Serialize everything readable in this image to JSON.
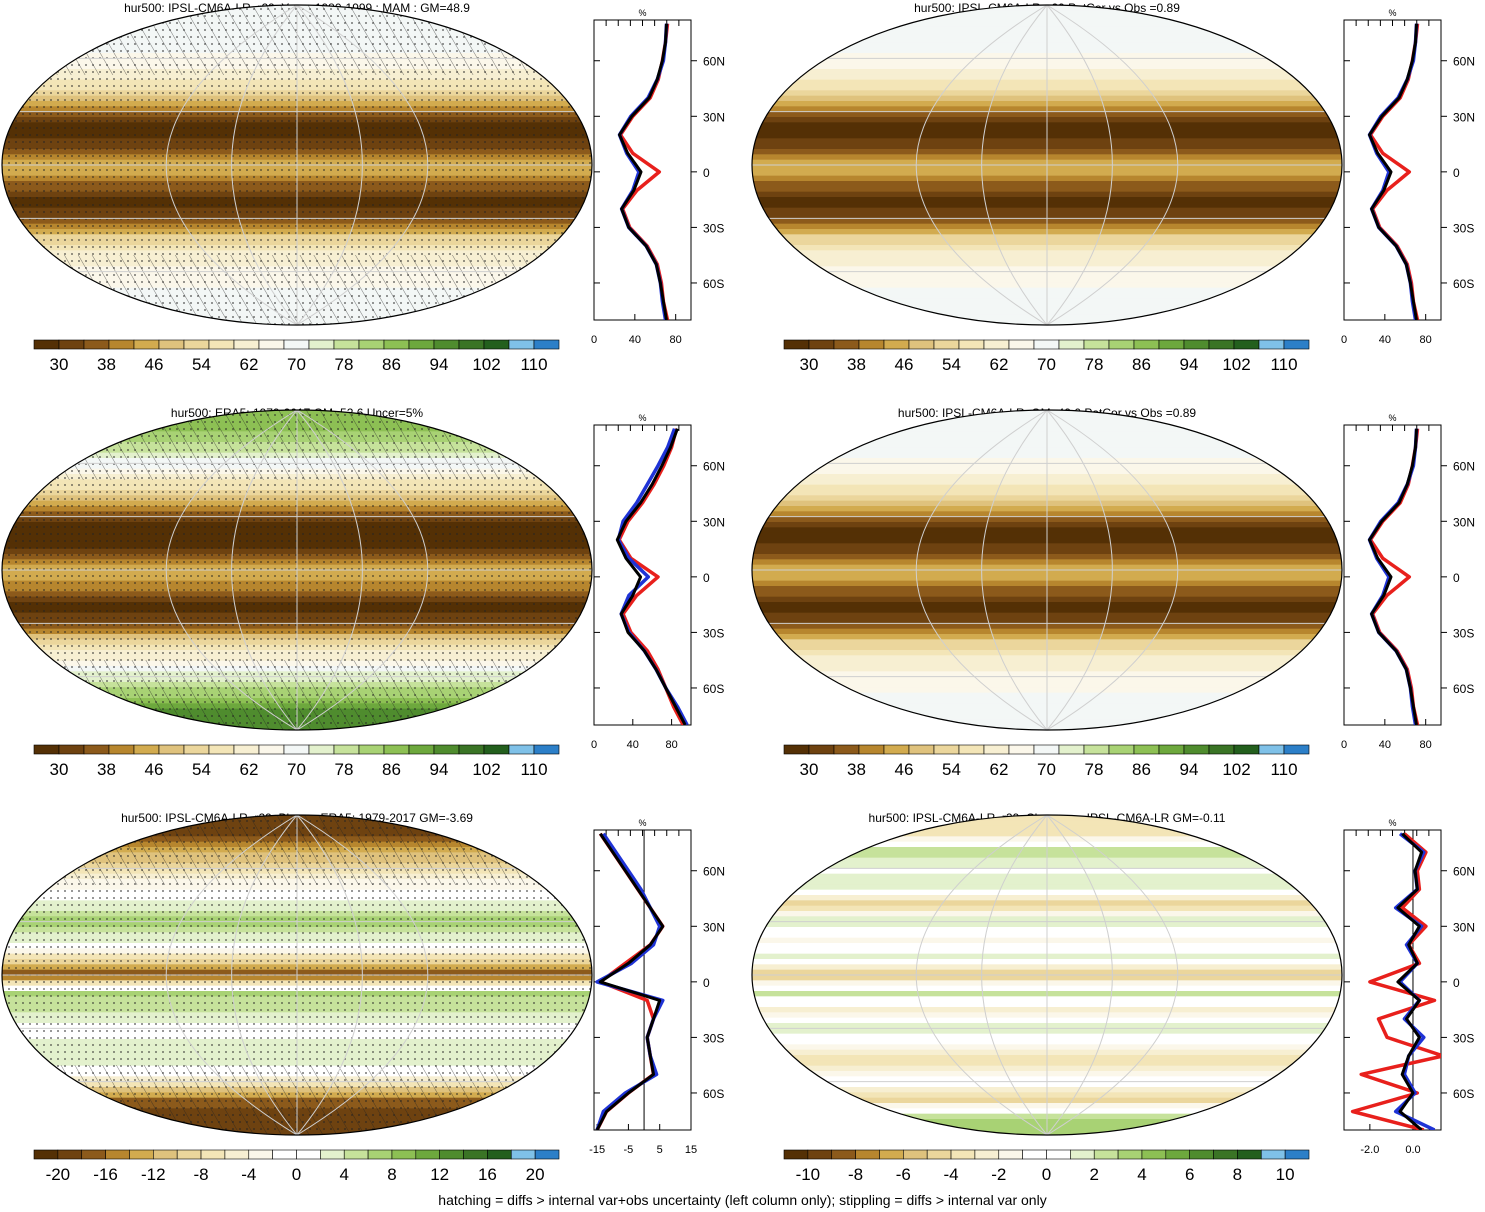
{
  "footnote": "hatching = diffs > internal var+obs uncertainty (left column only); stippling = diffs > internal var only",
  "colors": {
    "profile_series": [
      "#e8201c",
      "#1f33d6",
      "#000000"
    ],
    "abs_palette": [
      "#543005",
      "#6e4210",
      "#8c5a1b",
      "#b7862e",
      "#d2ab4f",
      "#dfc27d",
      "#ebd69c",
      "#f3e5b7",
      "#f7efd2",
      "#fbf7ea",
      "#f3f7f6",
      "#e3f1cd",
      "#c6e29b",
      "#a8d274",
      "#8dc054",
      "#6da83d",
      "#4f8c2e",
      "#3a7425",
      "#235f1d",
      "#7fc1e8",
      "#2c7fc8"
    ],
    "diff_palette": [
      "#543005",
      "#6e4210",
      "#8c5a1b",
      "#b7862e",
      "#d2ab4f",
      "#dfc27d",
      "#ebd69c",
      "#f3e5b7",
      "#f7efd2",
      "#fbf7ea",
      "#ffffff",
      "#ffffff",
      "#e3f1cd",
      "#c6e29b",
      "#a8d274",
      "#8dc054",
      "#6da83d",
      "#4f8c2e",
      "#3a7425",
      "#235f1d",
      "#7fc1e8",
      "#2c7fc8"
    ]
  },
  "chart_data": [
    {
      "type": "heatmap",
      "title": "hur500: IPSL-CM6A-LR_r29: Years 1980-1999 : MAM : GM=48.9",
      "colorbar_ticks": [
        "30",
        "38",
        "46",
        "54",
        "62",
        "70",
        "78",
        "86",
        "94",
        "102",
        "110"
      ],
      "colorbar_range": [
        26,
        114
      ],
      "field_mean": 48.9,
      "hatching": true,
      "stippling": true,
      "profile": {
        "title": "%",
        "xlim": [
          0,
          95
        ],
        "xticks": [
          "0",
          "40",
          "80"
        ],
        "ylim": [
          -80,
          82
        ],
        "yticks": [
          "60N",
          "30N",
          "0",
          "30S",
          "60S"
        ],
        "ytick_values": [
          60,
          30,
          0,
          -30,
          -60
        ],
        "lat": [
          80,
          70,
          60,
          50,
          40,
          30,
          20,
          10,
          0,
          -10,
          -20,
          -30,
          -40,
          -50,
          -60,
          -70,
          -80
        ],
        "series": [
          {
            "values": [
              72,
              70,
              67,
              63,
              55,
              38,
              26,
              38,
              64,
              42,
              28,
              35,
              52,
              62,
              66,
              68,
              72
            ]
          },
          {
            "values": [
              71,
              70,
              68,
              62,
              53,
              36,
              25,
              32,
              44,
              38,
              27,
              34,
              51,
              61,
              65,
              67,
              70
            ]
          },
          {
            "values": [
              71,
              70,
              67,
              62,
              54,
              37,
              25,
              33,
              46,
              39,
              27,
              34,
              51,
              61,
              65,
              68,
              71
            ]
          }
        ]
      }
    },
    {
      "type": "heatmap",
      "title": "hur500: IPSL-CM6A-LR_r29 PatCor vs Obs =0.89",
      "colorbar_ticks": [
        "30",
        "38",
        "46",
        "54",
        "62",
        "70",
        "78",
        "86",
        "94",
        "102",
        "110"
      ],
      "colorbar_range": [
        26,
        114
      ],
      "hatching": false,
      "stippling": false,
      "profile": {
        "title": "%",
        "xlim": [
          0,
          95
        ],
        "xticks": [
          "0",
          "40",
          "80"
        ],
        "ylim": [
          -80,
          82
        ],
        "yticks": [
          "60N",
          "30N",
          "0",
          "30S",
          "60S"
        ],
        "ytick_values": [
          60,
          30,
          0,
          -30,
          -60
        ],
        "lat": [
          80,
          70,
          60,
          50,
          40,
          30,
          20,
          10,
          0,
          -10,
          -20,
          -30,
          -40,
          -50,
          -60,
          -70,
          -80
        ],
        "series": [
          {
            "values": [
              72,
              70,
              67,
              63,
              55,
              38,
              26,
              38,
              64,
              42,
              28,
              35,
              52,
              62,
              66,
              68,
              72
            ]
          },
          {
            "values": [
              71,
              70,
              68,
              62,
              53,
              36,
              25,
              32,
              44,
              38,
              27,
              34,
              51,
              61,
              65,
              67,
              70
            ]
          },
          {
            "values": [
              71,
              70,
              67,
              62,
              54,
              37,
              25,
              33,
              46,
              39,
              27,
              34,
              51,
              61,
              65,
              68,
              71
            ]
          }
        ]
      }
    },
    {
      "type": "heatmap",
      "title": "hur500: ERA5: 1979-2017 GM=52.6 Uncer=5%",
      "colorbar_ticks": [
        "30",
        "38",
        "46",
        "54",
        "62",
        "70",
        "78",
        "86",
        "94",
        "102",
        "110"
      ],
      "colorbar_range": [
        26,
        114
      ],
      "field_mean": 52.6,
      "hatching": true,
      "stippling": true,
      "profile": {
        "title": "%",
        "xlim": [
          0,
          100
        ],
        "xticks": [
          "0",
          "40",
          "80"
        ],
        "ylim": [
          -80,
          82
        ],
        "yticks": [
          "60N",
          "30N",
          "0",
          "30S",
          "60S"
        ],
        "ytick_values": [
          60,
          30,
          0,
          -30,
          -60
        ],
        "lat": [
          80,
          70,
          60,
          50,
          40,
          30,
          20,
          10,
          0,
          -10,
          -20,
          -30,
          -40,
          -50,
          -60,
          -70,
          -80
        ],
        "series": [
          {
            "values": [
              85,
              80,
              72,
              62,
              50,
              35,
              26,
              38,
              66,
              44,
              30,
              38,
              55,
              66,
              74,
              82,
              92
            ]
          },
          {
            "values": [
              83,
              76,
              66,
              55,
              44,
              30,
              25,
              36,
              56,
              36,
              28,
              36,
              52,
              64,
              74,
              86,
              96
            ]
          },
          {
            "values": [
              86,
              79,
              70,
              60,
              48,
              33,
              24,
              33,
              48,
              40,
              28,
              35,
              52,
              64,
              74,
              84,
              94
            ]
          }
        ]
      }
    },
    {
      "type": "heatmap",
      "title": "hur500: IPSL-CM6A-LR: GM=49.0 PatCor vs Obs =0.89",
      "colorbar_ticks": [
        "30",
        "38",
        "46",
        "54",
        "62",
        "70",
        "78",
        "86",
        "94",
        "102",
        "110"
      ],
      "colorbar_range": [
        26,
        114
      ],
      "field_mean": 49.0,
      "hatching": false,
      "stippling": false,
      "profile": {
        "title": "%",
        "xlim": [
          0,
          95
        ],
        "xticks": [
          "0",
          "40",
          "80"
        ],
        "ylim": [
          -80,
          82
        ],
        "yticks": [
          "60N",
          "30N",
          "0",
          "30S",
          "60S"
        ],
        "ytick_values": [
          60,
          30,
          0,
          -30,
          -60
        ],
        "lat": [
          80,
          70,
          60,
          50,
          40,
          30,
          20,
          10,
          0,
          -10,
          -20,
          -30,
          -40,
          -50,
          -60,
          -70,
          -80
        ],
        "series": [
          {
            "values": [
              72,
              70,
              67,
              63,
              55,
              38,
              26,
              38,
              64,
              42,
              28,
              35,
              52,
              62,
              66,
              68,
              72
            ]
          },
          {
            "values": [
              71,
              70,
              68,
              62,
              53,
              36,
              25,
              32,
              44,
              38,
              27,
              34,
              51,
              61,
              65,
              67,
              70
            ]
          },
          {
            "values": [
              71,
              70,
              67,
              62,
              54,
              37,
              25,
              33,
              46,
              39,
              27,
              34,
              51,
              61,
              65,
              68,
              71
            ]
          }
        ]
      }
    },
    {
      "type": "heatmap",
      "title": "hur500: IPSL-CM6A-LR_r29: Bias vs ERA5: 1979-2017 GM=-3.69",
      "colorbar_ticks": [
        "-20",
        "-16",
        "-12",
        "-8",
        "-4",
        "0",
        "4",
        "8",
        "12",
        "16",
        "20"
      ],
      "colorbar_range": [
        -22,
        22
      ],
      "field_mean": -3.69,
      "hatching": true,
      "stippling": true,
      "profile": {
        "title": "%",
        "xlim": [
          -16,
          15
        ],
        "xticks": [
          "-15",
          "-5",
          "5",
          "15"
        ],
        "zero_line": 0,
        "ylim": [
          -80,
          82
        ],
        "yticks": [
          "60N",
          "30N",
          "0",
          "30S",
          "60S"
        ],
        "ytick_values": [
          60,
          30,
          0,
          -30,
          -60
        ],
        "lat": [
          80,
          70,
          60,
          50,
          40,
          30,
          20,
          10,
          0,
          -10,
          -20,
          -30,
          -40,
          -50,
          -60,
          -70,
          -80
        ],
        "series": [
          {
            "values": [
              -14,
              -10,
              -6,
              -2,
              2,
              6,
              2,
              -6,
              -14,
              1,
              3,
              1,
              2,
              3,
              -5,
              -12,
              -15
            ]
          },
          {
            "values": [
              -13,
              -9,
              -5,
              -1,
              2,
              5,
              3,
              -4,
              -15,
              6,
              3,
              1,
              2,
              4,
              -6,
              -13,
              -15
            ]
          },
          {
            "values": [
              -14,
              -10,
              -6,
              -2,
              2,
              6,
              2,
              -5,
              -14,
              5,
              3,
              1,
              2,
              3,
              -5,
              -12,
              -15
            ]
          }
        ]
      }
    },
    {
      "type": "heatmap",
      "title": "hur500: IPSL-CM6A-LR_r29: Change vs IPSL-CM6A-LR GM=-0.11",
      "colorbar_ticks": [
        "-10",
        "-8",
        "-6",
        "-4",
        "-2",
        "0",
        "2",
        "4",
        "6",
        "8",
        "10"
      ],
      "colorbar_range": [
        -11,
        11
      ],
      "field_mean": -0.11,
      "hatching": false,
      "stippling": false,
      "profile": {
        "title": "%",
        "xlim": [
          -3.2,
          1.3
        ],
        "xticks": [
          "-2.0",
          "0.0"
        ],
        "zero_line": 0,
        "ylim": [
          -80,
          82
        ],
        "yticks": [
          "60N",
          "30N",
          "0",
          "30S",
          "60S"
        ],
        "ytick_values": [
          60,
          30,
          0,
          -30,
          -60
        ],
        "lat": [
          80,
          70,
          60,
          50,
          40,
          30,
          20,
          10,
          0,
          -10,
          -20,
          -30,
          -40,
          -50,
          -60,
          -70,
          -80
        ],
        "series": [
          {
            "values": [
              -0.4,
              0.6,
              0.2,
              0.3,
              -0.5,
              0.6,
              -0.2,
              0.3,
              -2.0,
              1.0,
              -1.6,
              -1.2,
              1.4,
              -2.4,
              0.2,
              -2.8,
              0.5
            ]
          },
          {
            "values": [
              -0.6,
              0.5,
              0.1,
              0.2,
              -0.8,
              0.4,
              -0.3,
              0.2,
              -0.6,
              0.3,
              -0.4,
              0.5,
              -0.2,
              -0.4,
              0.1,
              -0.8,
              1.0
            ]
          },
          {
            "values": [
              -0.5,
              0.4,
              0.1,
              0.2,
              -0.7,
              0.3,
              -0.2,
              0.2,
              -0.7,
              0.3,
              -0.3,
              0.3,
              -0.2,
              -0.5,
              0.0,
              -0.6,
              0.4
            ]
          }
        ]
      }
    }
  ]
}
